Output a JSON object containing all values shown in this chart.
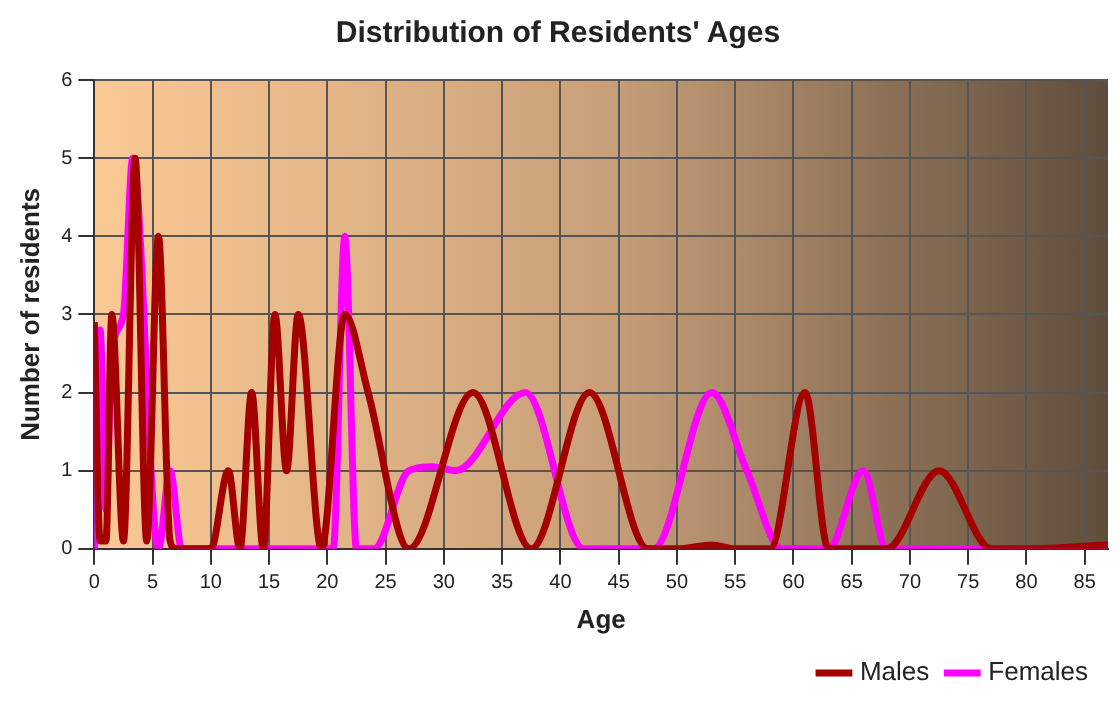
{
  "chart_data": {
    "type": "line",
    "title": "Distribution of Residents' Ages",
    "xlabel": "Age",
    "ylabel": "Number of residents",
    "xlim": [
      0,
      87
    ],
    "xticks": [
      0,
      5,
      10,
      15,
      20,
      25,
      30,
      35,
      40,
      45,
      50,
      55,
      60,
      65,
      70,
      75,
      80,
      85
    ],
    "ylim": [
      0,
      6
    ],
    "yticks": [
      0,
      1,
      2,
      3,
      4,
      5,
      6
    ],
    "grid": true,
    "legend": "bottom right",
    "marker": "none",
    "line_style": "solid",
    "series": [
      {
        "name": "Males",
        "color": "#a50000",
        "x": [
          0,
          0.5,
          1,
          1.5,
          2.5,
          3.5,
          4.5,
          5.5,
          6.5,
          7,
          10,
          11.5,
          12.5,
          13.5,
          14.5,
          15.5,
          16.5,
          17.5,
          19.5,
          21.5,
          23.5,
          27,
          32.5,
          37.5,
          42.5,
          47.5,
          50,
          53,
          55,
          58,
          61,
          63,
          68,
          72.5,
          77,
          80,
          87
        ],
        "values": [
          2.9,
          0.1,
          0.1,
          3,
          0.1,
          5,
          0.1,
          4,
          0.1,
          0,
          0,
          1,
          0,
          2,
          0,
          3,
          1,
          3,
          0,
          3,
          2,
          0,
          2,
          0,
          2,
          0,
          0,
          0.05,
          0,
          0,
          2,
          0,
          0,
          1,
          0,
          0,
          0.05
        ]
      },
      {
        "name": "Females",
        "color": "#ff00ff",
        "x": [
          0,
          0.5,
          1,
          1.5,
          2.5,
          3.3,
          5.5,
          6.5,
          7.5,
          20.5,
          21.5,
          22.5,
          24,
          27,
          29,
          31,
          37,
          42,
          48,
          53,
          56,
          59,
          63,
          66,
          68,
          87
        ],
        "values": [
          0,
          2.8,
          0.5,
          2.5,
          3,
          5,
          0,
          1,
          0,
          0,
          4,
          0,
          0,
          1,
          1.05,
          1,
          2,
          0,
          0,
          2,
          1,
          0,
          0,
          1,
          0,
          0
        ]
      }
    ]
  }
}
